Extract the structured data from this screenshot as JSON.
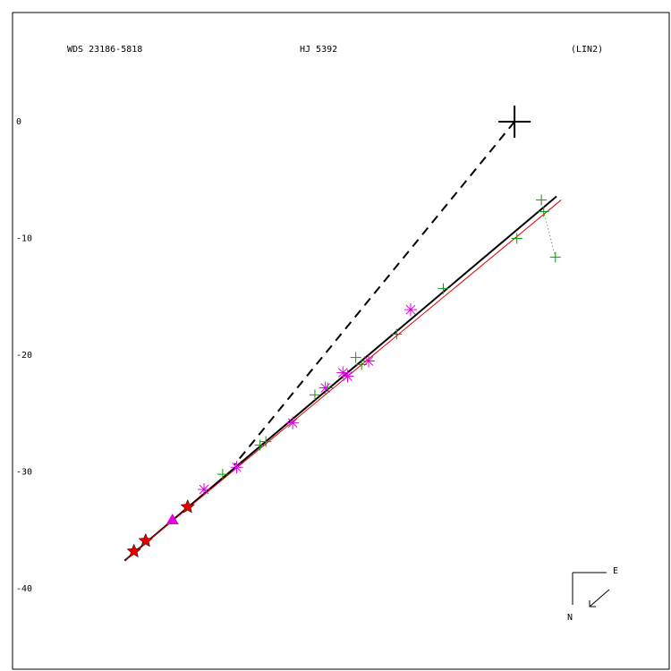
{
  "chart_data": {
    "type": "scatter",
    "title": "WDS 23186-5818",
    "subtitle": "HJ 5392",
    "annotation": "(LIN2)",
    "compass": {
      "east": "E",
      "north": "N"
    },
    "xlim": [
      -43.0,
      13.25
    ],
    "ylim": [
      -46.9,
      9.35
    ],
    "yticks": [
      0,
      -10,
      -20,
      -30,
      -40
    ],
    "lines": [
      {
        "style": "solid",
        "color": "#000000",
        "x": [
          -33.4,
          3.6
        ],
        "y": [
          -37.6,
          -6.4
        ]
      },
      {
        "style": "thin",
        "color": "#e00000",
        "x": [
          -33.3,
          4.0
        ],
        "y": [
          -37.5,
          -6.7
        ]
      },
      {
        "style": "dashed",
        "color": "#000000",
        "x": [
          0,
          -24.0
        ],
        "y": [
          0,
          -29.4
        ]
      },
      {
        "style": "dotted",
        "color": "#00a000",
        "x": [
          3.5,
          2.5
        ],
        "y": [
          -11.6,
          -7.7
        ]
      }
    ],
    "series": [
      {
        "marker": "plus",
        "color": "#00a000",
        "x": [
          2.3,
          2.5,
          3.5,
          0.2,
          -6.1,
          -10.1,
          -13.6,
          -13.1,
          -16.0,
          -17.1,
          -21.3,
          -21.8,
          -25.0
        ],
        "y": [
          -6.7,
          -7.7,
          -11.6,
          -10.0,
          -14.3,
          -18.2,
          -20.2,
          -20.8,
          -22.8,
          -23.4,
          -27.4,
          -27.7,
          -30.2
        ]
      },
      {
        "marker": "asterisk",
        "color": "#e000e0",
        "x": [
          -8.9,
          -12.5,
          -14.3,
          -14.7,
          -16.2,
          -19.0,
          -23.8,
          -26.6
        ],
        "y": [
          -16.1,
          -20.5,
          -21.8,
          -21.5,
          -22.8,
          -25.8,
          -29.6,
          -31.5
        ]
      },
      {
        "marker": "star",
        "color": "#e00000",
        "x": [
          -28.0,
          -31.6,
          -32.6
        ],
        "y": [
          -33.0,
          -35.9,
          -36.8
        ]
      },
      {
        "marker": "triangle",
        "color": "#e000e0",
        "x": [
          -29.3
        ],
        "y": [
          -34.1
        ]
      },
      {
        "marker": "primary",
        "color": "#000000",
        "x": [
          0
        ],
        "y": [
          0
        ]
      }
    ]
  }
}
